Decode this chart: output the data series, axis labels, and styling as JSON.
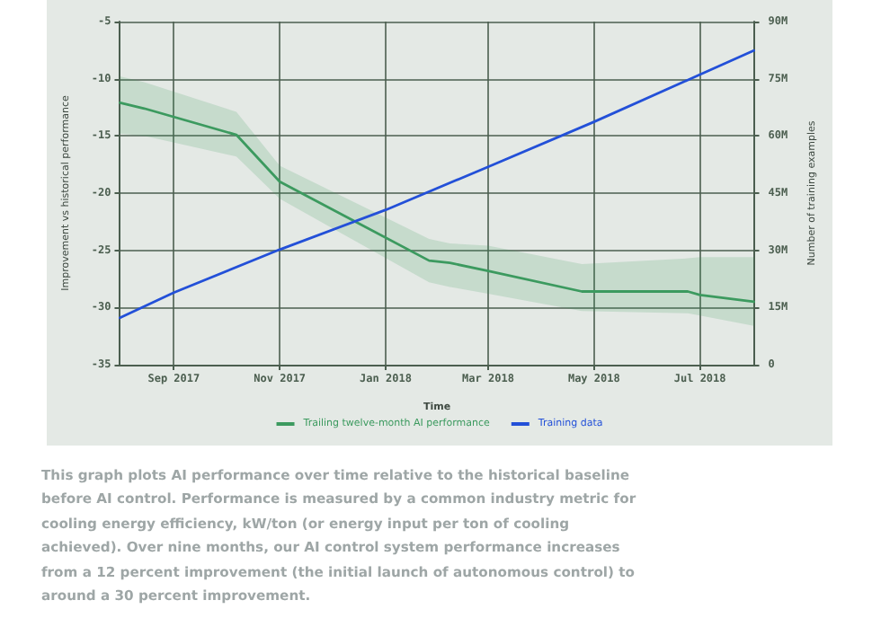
{
  "chart_data": {
    "type": "line",
    "xlabel": "Time",
    "ylabel": "Improvement vs historical performance",
    "y2label": "Number of training examples",
    "xlim": [
      "2017-08-01",
      "2018-08-01"
    ],
    "xticks": [
      {
        "value": "2017-09-01",
        "label": "Sep 2017"
      },
      {
        "value": "2017-11-01",
        "label": "Nov 2017"
      },
      {
        "value": "2018-01-01",
        "label": "Jan 2018"
      },
      {
        "value": "2018-03-01",
        "label": "Mar 2018"
      },
      {
        "value": "2018-05-01",
        "label": "May 2018"
      },
      {
        "value": "2018-07-01",
        "label": "Jul 2018"
      }
    ],
    "ylim": [
      -35,
      -5
    ],
    "yticks": [
      -35,
      -30,
      -25,
      -20,
      -15,
      -10,
      -5
    ],
    "y2lim": [
      0,
      90
    ],
    "y2ticks": [
      0,
      {
        "value": 15,
        "label": "15M"
      },
      {
        "value": 30,
        "label": "30M"
      },
      {
        "value": 45,
        "label": "45M"
      },
      {
        "value": 60,
        "label": "60M"
      },
      {
        "value": 75,
        "label": "75M"
      },
      {
        "value": 90,
        "label": "90M"
      }
    ],
    "series": [
      {
        "name": "Trailing twelve-month AI performance",
        "color": "#3c9a5f",
        "x": [
          "2017-08-01",
          "2017-08-15",
          "2017-10-07",
          "2017-11-01",
          "2018-01-26",
          "2018-02-07",
          "2018-03-01",
          "2018-04-24",
          "2018-06-24",
          "2018-07-01",
          "2018-08-01"
        ],
        "values": [
          -12.1,
          -12.6,
          -14.9,
          -19.0,
          -25.9,
          -26.1,
          -26.8,
          -28.6,
          -28.6,
          -28.9,
          -29.5
        ],
        "upper": [
          -9.8,
          -10.3,
          -12.9,
          -17.6,
          -24.0,
          -24.4,
          -24.6,
          -26.2,
          -25.7,
          -25.6,
          -25.6
        ],
        "lower": [
          -14.8,
          -15.0,
          -16.8,
          -20.5,
          -27.8,
          -28.2,
          -28.8,
          -30.3,
          -30.5,
          -30.7,
          -31.6
        ]
      },
      {
        "name": "Training data",
        "color": "#2350d8",
        "axis": "y2",
        "x": [
          "2017-08-01",
          "2017-09-01",
          "2017-11-01",
          "2018-01-01",
          "2018-03-01",
          "2018-05-01",
          "2018-07-01",
          "2018-08-01"
        ],
        "values": [
          12.3,
          18.9,
          30.2,
          40.6,
          51.9,
          63.7,
          76.1,
          82.4
        ]
      }
    ],
    "grid": true,
    "legend": "bottom",
    "line_style": "solid",
    "annotations": [
      "This graph plots AI performance over time relative to the historical baseline before AI control. Performance is measured by a common industry metric for cooling energy efficiency, kW/ton (or energy input per ton of cooling achieved). Over nine months, our AI control system performance increases from a 12 percent improvement (the initial launch of autonomous control) to around a 30 percent improvement."
    ]
  }
}
